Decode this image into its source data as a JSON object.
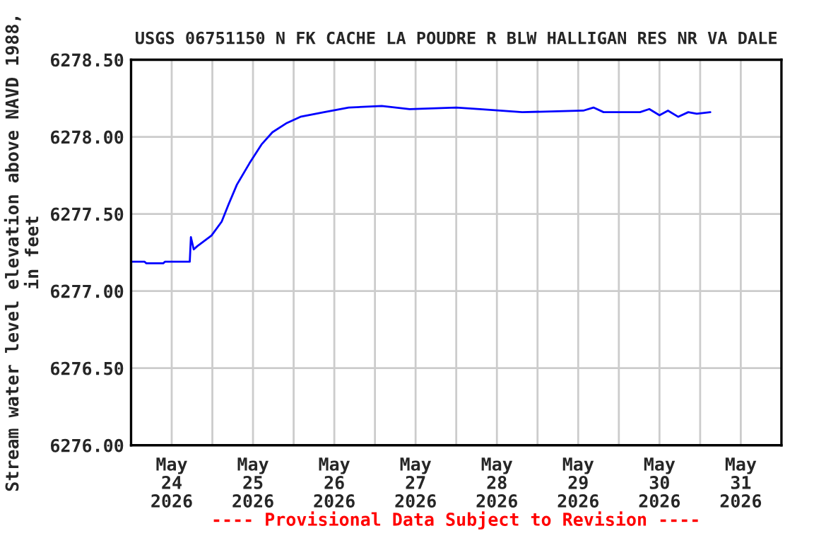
{
  "chart_data": {
    "type": "line",
    "title": "USGS 06751150 N FK CACHE LA POUDRE R BLW HALLIGAN RES NR VA DALE",
    "ylabel": "Stream water level elevation above NAVD 1988, in feet",
    "annotations": [
      "---- Provisional Data Subject to Revision ----"
    ],
    "x": [
      "2026-05-24T00:00",
      "2026-05-24T04:00",
      "2026-05-24T04:30",
      "2026-05-24T09:30",
      "2026-05-24T10:00",
      "2026-05-24T17:20",
      "2026-05-24T17:40",
      "2026-05-24T18:30",
      "2026-05-24T19:30",
      "2026-05-24T23:45",
      "2026-05-25T02:45",
      "2026-05-25T04:45",
      "2026-05-25T07:15",
      "2026-05-25T11:00",
      "2026-05-25T14:30",
      "2026-05-25T17:45",
      "2026-05-25T22:00",
      "2026-05-26T02:00",
      "2026-05-26T09:00",
      "2026-05-26T16:15",
      "2026-05-27T02:00",
      "2026-05-27T10:15",
      "2026-05-28T00:00",
      "2026-05-28T07:00",
      "2026-05-28T19:30",
      "2026-05-29T13:30",
      "2026-05-29T16:30",
      "2026-05-29T19:30",
      "2026-05-30T06:15",
      "2026-05-30T09:00",
      "2026-05-30T12:00",
      "2026-05-30T14:30",
      "2026-05-30T17:30",
      "2026-05-30T20:30",
      "2026-05-30T23:00",
      "2026-05-31T03:00"
    ],
    "series": [
      {
        "color": "#0000ff",
        "values": [
          6277.19,
          6277.19,
          6277.18,
          6277.18,
          6277.19,
          6277.19,
          6277.35,
          6277.27,
          6277.29,
          6277.36,
          6277.45,
          6277.56,
          6277.69,
          6277.83,
          6277.95,
          6278.03,
          6278.09,
          6278.13,
          6278.16,
          6278.19,
          6278.2,
          6278.18,
          6278.19,
          6278.18,
          6278.16,
          6278.17,
          6278.19,
          6278.16,
          6278.16,
          6278.18,
          6278.14,
          6278.17,
          6278.13,
          6278.16,
          6278.15,
          6278.16
        ]
      }
    ],
    "xlim": [
      "2026-05-24T00:00",
      "2026-06-01T00:00"
    ],
    "xticks": [
      {
        "value": "2026-05-24T12:00",
        "label": "May\n24\n2026"
      },
      {
        "value": "2026-05-25T12:00",
        "label": "May\n25\n2026"
      },
      {
        "value": "2026-05-26T12:00",
        "label": "May\n26\n2026"
      },
      {
        "value": "2026-05-27T12:00",
        "label": "May\n27\n2026"
      },
      {
        "value": "2026-05-28T12:00",
        "label": "May\n28\n2026"
      },
      {
        "value": "2026-05-29T12:00",
        "label": "May\n29\n2026"
      },
      {
        "value": "2026-05-30T12:00",
        "label": "May\n30\n2026"
      },
      {
        "value": "2026-05-31T12:00",
        "label": "May\n31\n2026"
      },
      {
        "value": "2026-05-25T00:00",
        "label": null
      },
      {
        "value": "2026-05-26T00:00",
        "label": null
      },
      {
        "value": "2026-05-27T00:00",
        "label": null
      },
      {
        "value": "2026-05-28T00:00",
        "label": null
      },
      {
        "value": "2026-05-29T00:00",
        "label": null
      },
      {
        "value": "2026-05-30T00:00",
        "label": null
      },
      {
        "value": "2026-05-31T00:00",
        "label": null
      }
    ],
    "ylim": [
      6276.0,
      6278.5
    ],
    "yticks": [
      {
        "value": 6276.0,
        "label": "6276.00"
      },
      {
        "value": 6276.5,
        "label": "6276.50"
      },
      {
        "value": 6277.0,
        "label": "6277.00"
      },
      {
        "value": 6277.5,
        "label": "6277.50"
      },
      {
        "value": 6278.0,
        "label": "6278.00"
      },
      {
        "value": 6278.5,
        "label": "6278.50"
      }
    ],
    "grid": true,
    "legend": false
  }
}
